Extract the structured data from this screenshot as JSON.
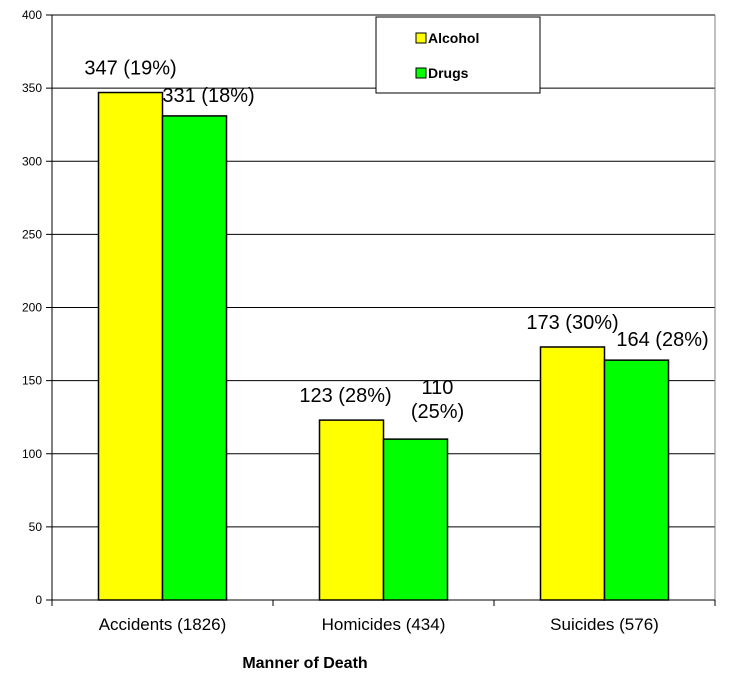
{
  "chart_data": {
    "type": "bar",
    "categories": [
      "Accidents (1826)",
      "Homicides (434)",
      "Suicides (576)"
    ],
    "series": [
      {
        "name": "Alcohol",
        "color": "#ffff00",
        "values": [
          347,
          123,
          173
        ],
        "labels": [
          "347 (19%)",
          "123 (28%)",
          "173 (30%)"
        ]
      },
      {
        "name": "Drugs",
        "color": "#00ff00",
        "values": [
          331,
          110,
          164
        ],
        "labels": [
          "331 (18%)",
          "110 (25%)",
          "164 (28%)"
        ]
      }
    ],
    "ylim": [
      0,
      400
    ],
    "yticks": [
      0,
      50,
      100,
      150,
      200,
      250,
      300,
      350,
      400
    ],
    "xlabel": "Manner of Death",
    "ylabel": "",
    "title": "",
    "grid": true,
    "legend_position": "top-right"
  }
}
